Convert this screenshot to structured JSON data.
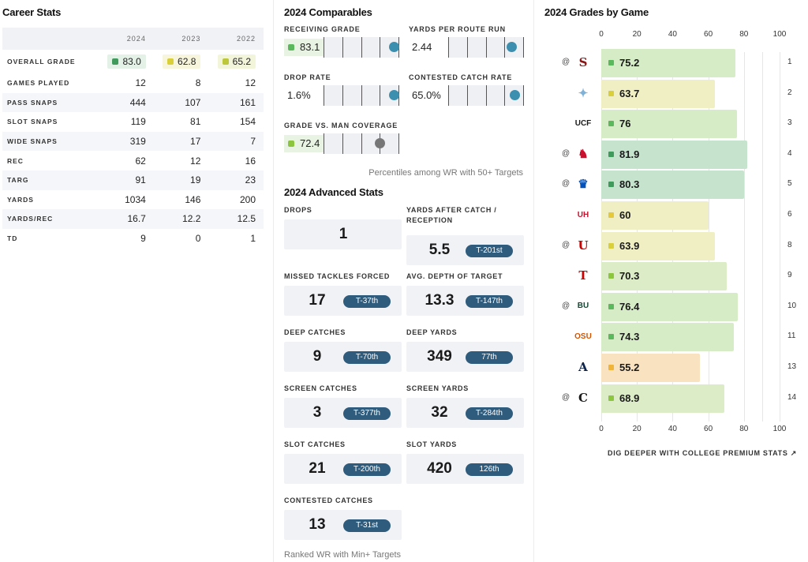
{
  "career": {
    "title": "Career Stats",
    "years": [
      "2024",
      "2023",
      "2022"
    ],
    "overall": {
      "label": "OVERALL GRADE",
      "grades": [
        {
          "value": "83.0",
          "color": "#3f9a5c",
          "bg": "#e4f1e7"
        },
        {
          "value": "62.8",
          "color": "#d8cf3a",
          "bg": "#f7f5dc"
        },
        {
          "value": "65.2",
          "color": "#bcc73a",
          "bg": "#f3f5db"
        }
      ]
    },
    "rows": [
      {
        "label": "GAMES PLAYED",
        "values": [
          "12",
          "8",
          "12"
        ]
      },
      {
        "label": "PASS SNAPS",
        "values": [
          "444",
          "107",
          "161"
        ]
      },
      {
        "label": "SLOT SNAPS",
        "values": [
          "119",
          "81",
          "154"
        ]
      },
      {
        "label": "WIDE SNAPS",
        "values": [
          "319",
          "17",
          "7"
        ]
      },
      {
        "label": "REC",
        "values": [
          "62",
          "12",
          "16"
        ]
      },
      {
        "label": "TARG",
        "values": [
          "91",
          "19",
          "23"
        ]
      },
      {
        "label": "YARDS",
        "values": [
          "1034",
          "146",
          "200"
        ]
      },
      {
        "label": "YARDS/REC",
        "values": [
          "16.7",
          "12.2",
          "12.5"
        ]
      },
      {
        "label": "TD",
        "values": [
          "9",
          "0",
          "1"
        ]
      }
    ]
  },
  "comparables": {
    "title": "2024 Comparables",
    "items": [
      {
        "label": "RECEIVING GRADE",
        "value": "83.1",
        "chip": true,
        "chip_color": "#5cb85c",
        "percentile": 0.93,
        "dot_color": "#3d8fb0"
      },
      {
        "label": "YARDS PER ROUTE RUN",
        "value": "2.44",
        "chip": false,
        "percentile": 0.84,
        "dot_color": "#3d8fb0"
      },
      {
        "label": "DROP RATE",
        "value": "1.6%",
        "chip": false,
        "percentile": 0.93,
        "dot_color": "#3d8fb0"
      },
      {
        "label": "CONTESTED CATCH RATE",
        "value": "65.0%",
        "chip": false,
        "percentile": 0.88,
        "dot_color": "#3d8fb0"
      },
      {
        "label": "GRADE VS. MAN COVERAGE",
        "value": "72.4",
        "chip": true,
        "chip_color": "#8cc63f",
        "percentile": 0.74,
        "dot_color": "#777777"
      }
    ],
    "note": "Percentiles among WR with 50+ Targets"
  },
  "advanced": {
    "title": "2024 Advanced Stats",
    "items": [
      {
        "label": "DROPS",
        "value": "1",
        "rank": ""
      },
      {
        "label": "YARDS AFTER CATCH / RECEPTION",
        "value": "5.5",
        "rank": "T-201st"
      },
      {
        "label": "MISSED TACKLES FORCED",
        "value": "17",
        "rank": "T-37th"
      },
      {
        "label": "AVG. DEPTH OF TARGET",
        "value": "13.3",
        "rank": "T-147th"
      },
      {
        "label": "DEEP CATCHES",
        "value": "9",
        "rank": "T-70th"
      },
      {
        "label": "DEEP YARDS",
        "value": "349",
        "rank": "77th"
      },
      {
        "label": "SCREEN CATCHES",
        "value": "3",
        "rank": "T-377th"
      },
      {
        "label": "SCREEN YARDS",
        "value": "32",
        "rank": "T-284th"
      },
      {
        "label": "SLOT CATCHES",
        "value": "21",
        "rank": "T-200th"
      },
      {
        "label": "SLOT YARDS",
        "value": "420",
        "rank": "126th"
      },
      {
        "label": "CONTESTED CATCHES",
        "value": "13",
        "rank": "T-31st"
      }
    ],
    "note": "Ranked WR with Min+ Targets"
  },
  "games": {
    "title": "2024 Grades by Game",
    "axis": [
      "0",
      "20",
      "40",
      "60",
      "80",
      "100"
    ],
    "deeper": "DIG DEEPER WITH COLLEGE PREMIUM STATS ↗",
    "rows": [
      {
        "at": "@",
        "logo": "S",
        "logo_color": "#8c1515",
        "grade": "75.2",
        "week": "1",
        "color": "#d6ecc6",
        "sq": "#5cb85c"
      },
      {
        "at": "",
        "logo": "✦",
        "logo_color": "#7fb2d6",
        "grade": "63.7",
        "week": "2",
        "color": "#f0efc4",
        "sq": "#d8cf3a"
      },
      {
        "at": "",
        "logo": "UCF",
        "logo_color": "#1a1a1a",
        "grade": "76",
        "week": "3",
        "color": "#d6ecc6",
        "sq": "#5cb85c"
      },
      {
        "at": "@",
        "logo": "♞",
        "logo_color": "#c8102e",
        "grade": "81.9",
        "week": "4",
        "color": "#c6e3cd",
        "sq": "#3f9a5c"
      },
      {
        "at": "@",
        "logo": "♛",
        "logo_color": "#0051ba",
        "grade": "80.3",
        "week": "5",
        "color": "#c6e3cd",
        "sq": "#3f9a5c"
      },
      {
        "at": "",
        "logo": "UH",
        "logo_color": "#c8102e",
        "grade": "60",
        "week": "6",
        "color": "#f0efc4",
        "sq": "#e5c93a"
      },
      {
        "at": "@",
        "logo": "U",
        "logo_color": "#cc0000",
        "grade": "63.9",
        "week": "8",
        "color": "#f0efc4",
        "sq": "#d8cf3a"
      },
      {
        "at": "",
        "logo": "T",
        "logo_color": "#cc0000",
        "grade": "70.3",
        "week": "9",
        "color": "#dbecc6",
        "sq": "#8cc63f"
      },
      {
        "at": "@",
        "logo": "BU",
        "logo_color": "#154734",
        "grade": "76.4",
        "week": "10",
        "color": "#d6ecc6",
        "sq": "#5cb85c"
      },
      {
        "at": "",
        "logo": "OSU",
        "logo_color": "#d45500",
        "grade": "74.3",
        "week": "11",
        "color": "#d6ecc6",
        "sq": "#5cb85c"
      },
      {
        "at": "",
        "logo": "A",
        "logo_color": "#0c234b",
        "grade": "55.2",
        "week": "13",
        "color": "#f8e2c0",
        "sq": "#f0b43a"
      },
      {
        "at": "@",
        "logo": "C",
        "logo_color": "#1a1a1a",
        "grade": "68.9",
        "week": "14",
        "color": "#dbecc6",
        "sq": "#8cc63f"
      }
    ]
  }
}
